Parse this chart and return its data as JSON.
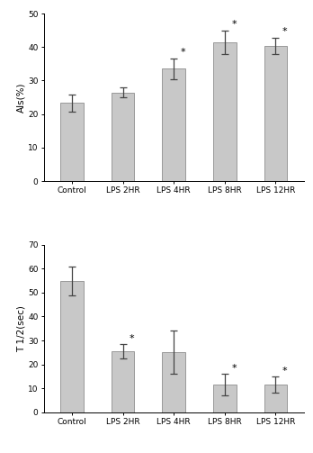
{
  "categories": [
    "Control",
    "LPS 2HR",
    "LPS 4HR",
    "LPS 8HR",
    "LPS 12HR"
  ],
  "ai_values": [
    23.3,
    26.5,
    33.5,
    41.5,
    40.3
  ],
  "ai_errors": [
    2.5,
    1.5,
    3.0,
    3.5,
    2.5
  ],
  "ai_sig": [
    false,
    false,
    true,
    true,
    true
  ],
  "t_values": [
    55.0,
    25.5,
    25.0,
    11.5,
    11.5
  ],
  "t_errors": [
    6.0,
    3.0,
    9.0,
    4.5,
    3.5
  ],
  "t_sig": [
    false,
    true,
    false,
    true,
    true
  ],
  "bar_color": "#c8c8c8",
  "bar_edgecolor": "#999999",
  "ai_ylabel": "AIs(%)",
  "t_ylabel": "T 1/2(sec)",
  "ai_ylim": [
    0,
    50
  ],
  "t_ylim": [
    0,
    70
  ],
  "ai_yticks": [
    0,
    10,
    20,
    30,
    40,
    50
  ],
  "t_yticks": [
    0,
    10,
    20,
    30,
    40,
    50,
    60,
    70
  ],
  "bar_width": 0.45,
  "capsize": 3,
  "star_fontsize": 8,
  "tick_fontsize": 6.5,
  "label_fontsize": 7.5,
  "background_color": "#ffffff"
}
